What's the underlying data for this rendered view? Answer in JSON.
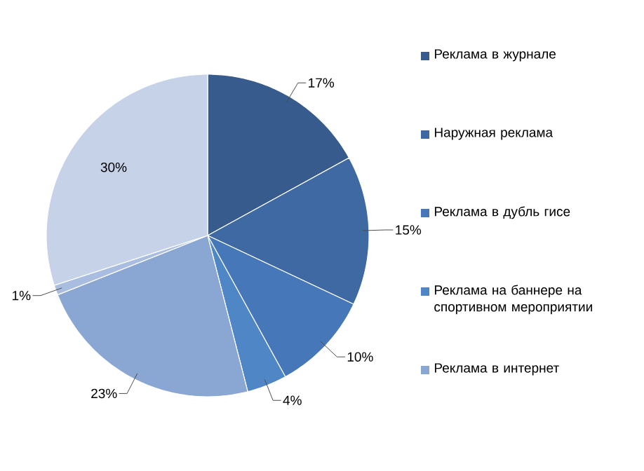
{
  "chart_data": {
    "type": "pie",
    "categories": [
      "Реклама в журнале",
      "Наружная реклама",
      "Реклама в дубль гисе",
      "Реклама на баннере на спортивном мероприятии",
      "Реклама в интернет",
      null,
      null
    ],
    "values": [
      17,
      15,
      10,
      4,
      23,
      1,
      30
    ],
    "value_labels": [
      "17%",
      "15%",
      "10%",
      "4%",
      "23%",
      "1%",
      "30%"
    ],
    "colors": [
      "#375b8d",
      "#3e69a3",
      "#4677b8",
      "#4f86c6",
      "#8aa6d2",
      "#a9bde0",
      "#c6d2e8"
    ],
    "legend": "right"
  }
}
